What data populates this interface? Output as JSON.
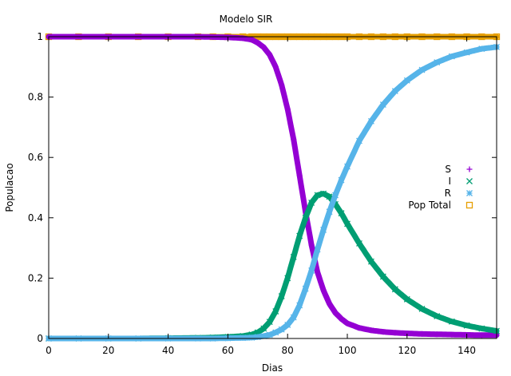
{
  "chart_data": {
    "type": "line",
    "title": "Modelo SIR",
    "xlabel": "Dias",
    "ylabel": "Populacao",
    "xlim": [
      0,
      150
    ],
    "ylim": [
      0,
      1
    ],
    "xticks": [
      0,
      20,
      40,
      60,
      80,
      100,
      120,
      140
    ],
    "yticks": [
      0,
      0.2,
      0.4,
      0.6,
      0.8,
      1
    ],
    "ytick_labels": [
      "0",
      "0.2",
      "0.4",
      "0.6",
      "0.8",
      "1"
    ],
    "grid": false,
    "legend_position": "right",
    "x": [
      0,
      10,
      20,
      30,
      40,
      50,
      55,
      60,
      65,
      68,
      70,
      72,
      74,
      76,
      78,
      80,
      82,
      84,
      86,
      88,
      90,
      92,
      94,
      96,
      98,
      100,
      104,
      108,
      112,
      116,
      120,
      125,
      130,
      135,
      140,
      145,
      150
    ],
    "series": [
      {
        "name": "S",
        "marker": "+",
        "color": "#9400d3",
        "values": [
          1.0,
          1.0,
          1.0,
          1.0,
          1.0,
          1.0,
          0.999,
          0.998,
          0.995,
          0.99,
          0.98,
          0.965,
          0.94,
          0.9,
          0.84,
          0.76,
          0.66,
          0.54,
          0.42,
          0.31,
          0.22,
          0.16,
          0.115,
          0.085,
          0.065,
          0.05,
          0.035,
          0.027,
          0.022,
          0.019,
          0.017,
          0.015,
          0.014,
          0.013,
          0.012,
          0.011,
          0.011
        ]
      },
      {
        "name": "I",
        "marker": "x",
        "color": "#009e73",
        "values": [
          0.0,
          0.0,
          0.0,
          0.0,
          0.001,
          0.002,
          0.003,
          0.005,
          0.008,
          0.013,
          0.02,
          0.033,
          0.055,
          0.09,
          0.14,
          0.2,
          0.27,
          0.34,
          0.4,
          0.45,
          0.475,
          0.48,
          0.47,
          0.445,
          0.415,
          0.38,
          0.315,
          0.255,
          0.205,
          0.163,
          0.13,
          0.098,
          0.074,
          0.056,
          0.043,
          0.033,
          0.025
        ]
      },
      {
        "name": "R",
        "marker": "*",
        "color": "#56b4e9",
        "values": [
          0.0,
          0.0,
          0.0,
          0.0,
          0.0,
          0.0,
          0.0,
          0.001,
          0.002,
          0.003,
          0.005,
          0.008,
          0.012,
          0.02,
          0.03,
          0.045,
          0.07,
          0.11,
          0.165,
          0.225,
          0.295,
          0.36,
          0.42,
          0.475,
          0.525,
          0.57,
          0.655,
          0.72,
          0.775,
          0.82,
          0.855,
          0.89,
          0.915,
          0.935,
          0.948,
          0.96,
          0.966
        ]
      },
      {
        "name": "Pop Total",
        "marker": "square",
        "color": "#e69f00",
        "values": [
          1,
          1,
          1,
          1,
          1,
          1,
          1,
          1,
          1,
          1,
          1,
          1,
          1,
          1,
          1,
          1,
          1,
          1,
          1,
          1,
          1,
          1,
          1,
          1,
          1,
          1,
          1,
          1,
          1,
          1,
          1,
          1,
          1,
          1,
          1,
          1,
          1
        ]
      }
    ]
  }
}
